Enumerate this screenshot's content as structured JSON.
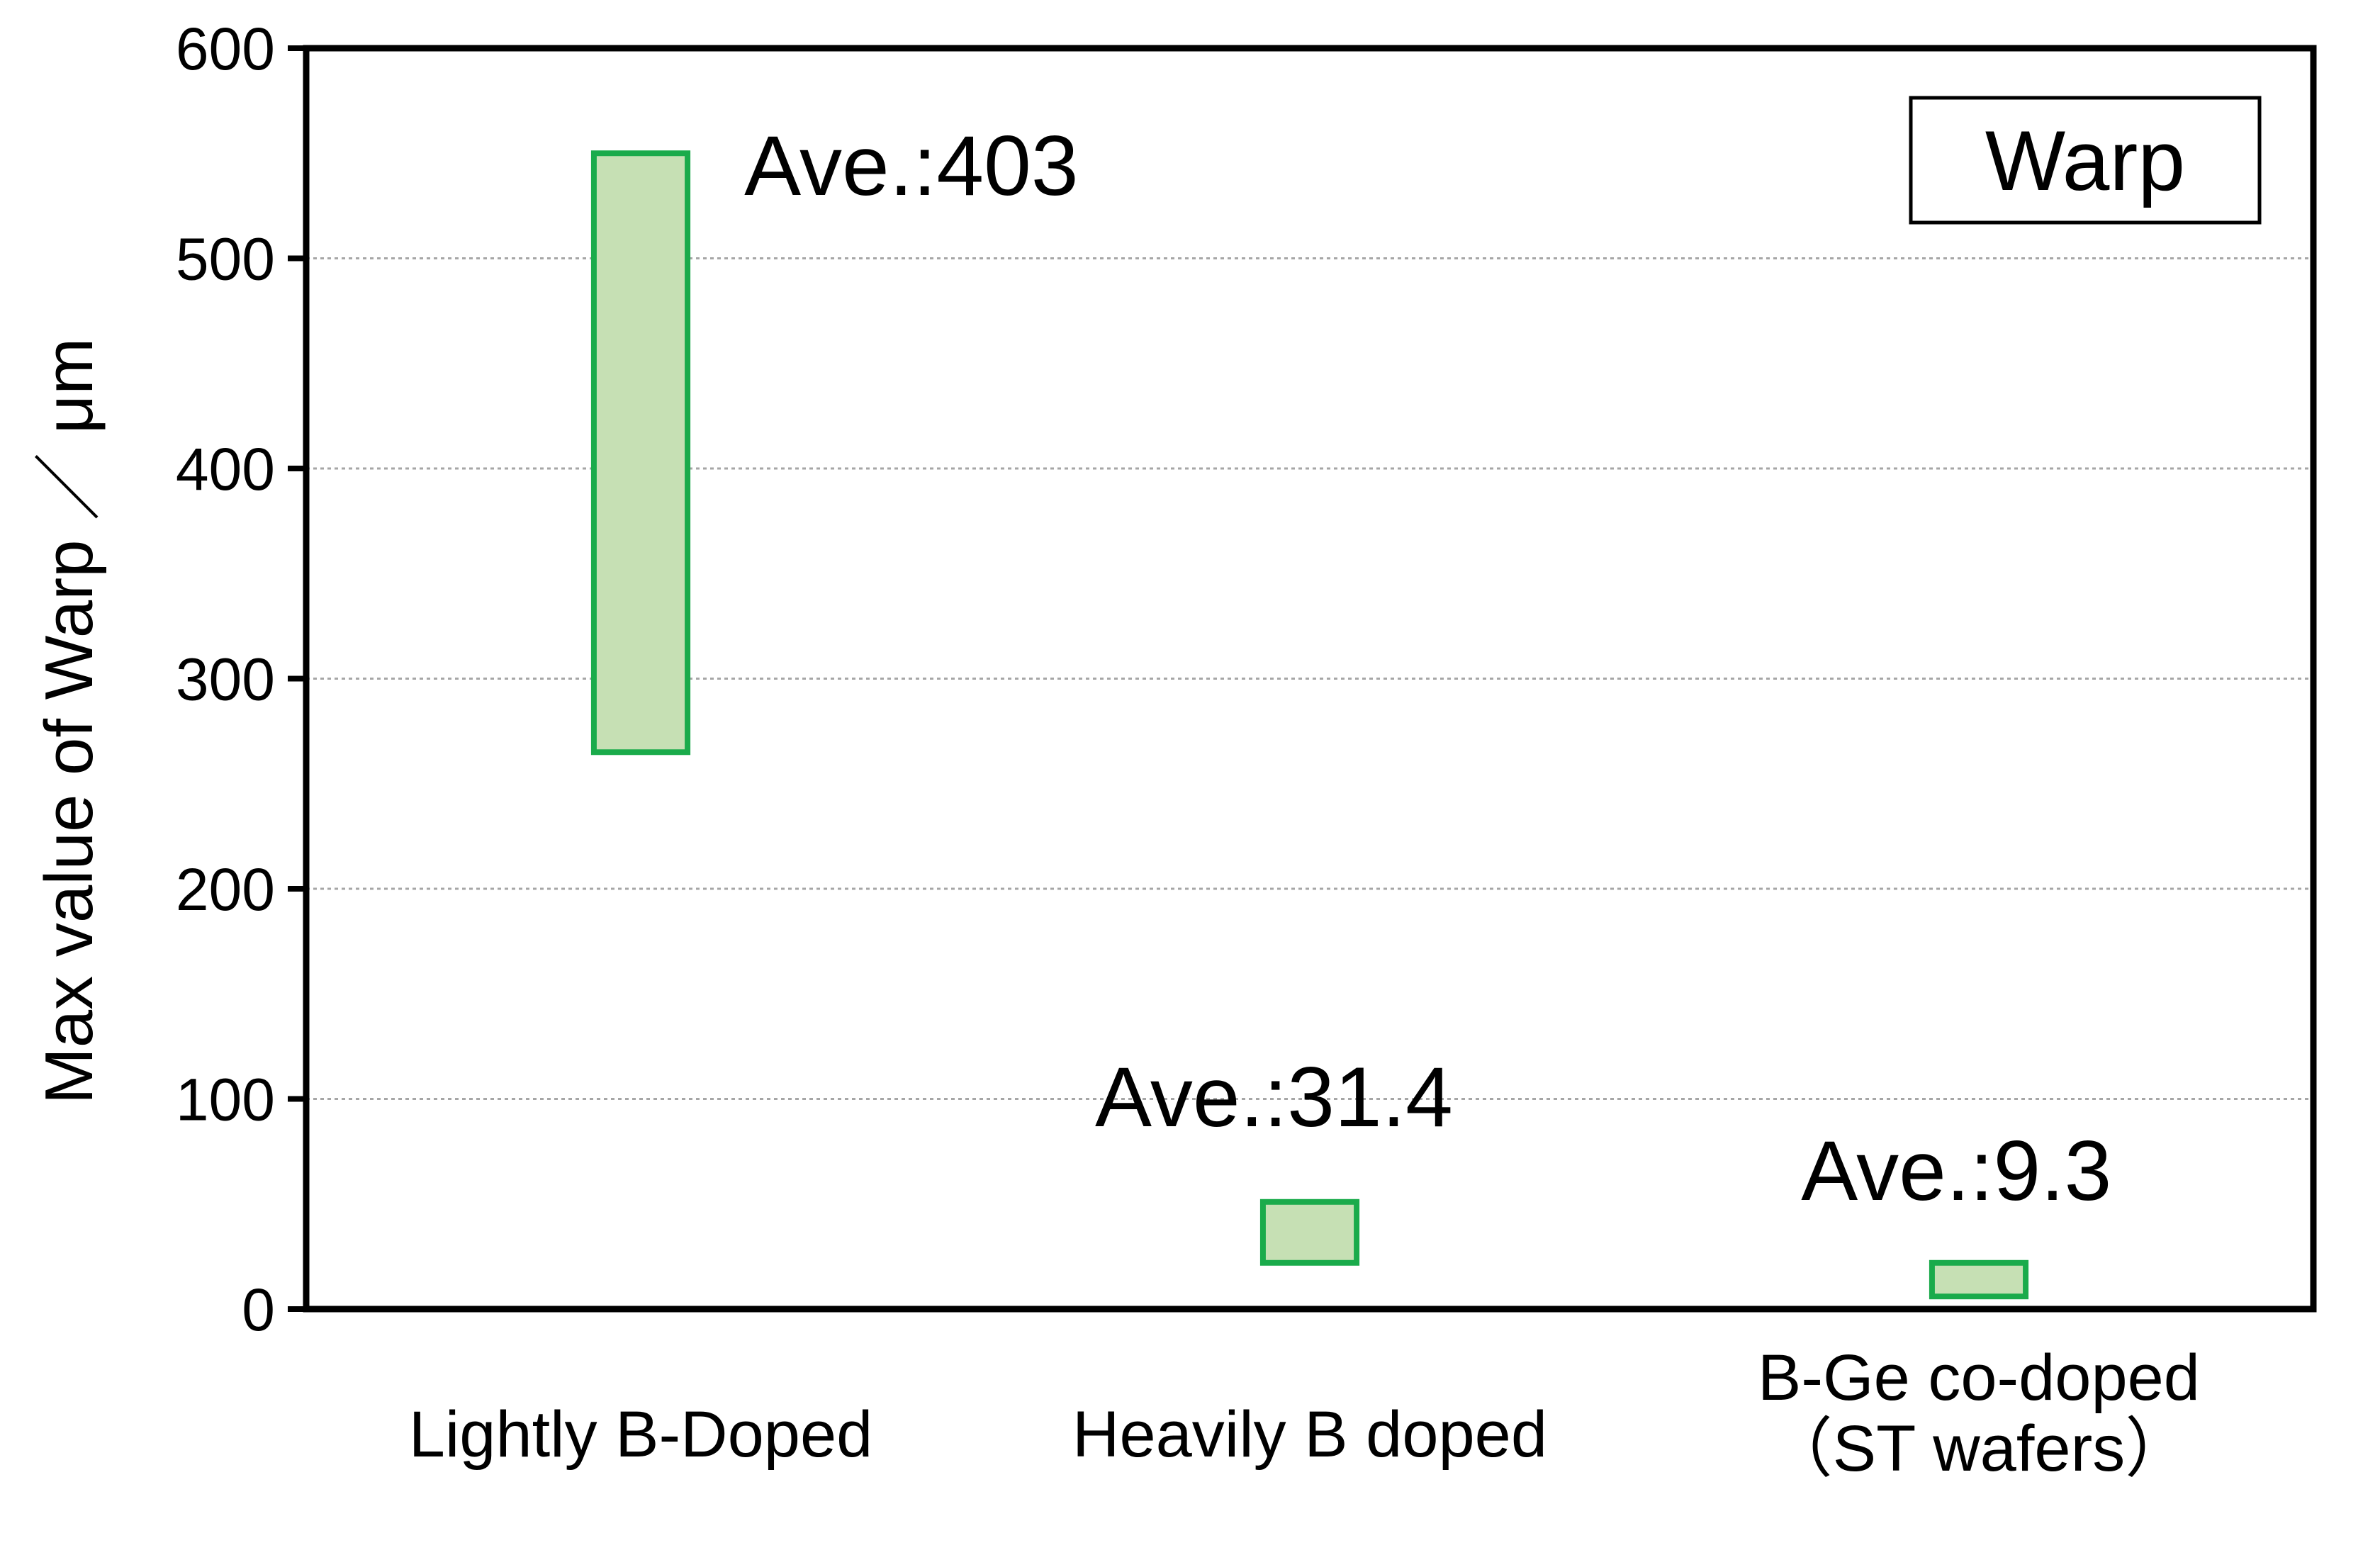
{
  "chart_data": {
    "type": "bar",
    "subtype": "floating-range",
    "ylabel": "Max value of Warp ／ μm",
    "ylim": [
      0,
      600
    ],
    "yticks": [
      0,
      100,
      200,
      300,
      400,
      500,
      600
    ],
    "grid": "horizontal dotted",
    "legend": {
      "label": "Warp",
      "placement": "top-right"
    },
    "categories": [
      {
        "lines": [
          "Lightly B-Doped"
        ]
      },
      {
        "lines": [
          "Heavily B doped"
        ]
      },
      {
        "lines": [
          "B-Ge co-doped",
          "（ST wafers）"
        ]
      }
    ],
    "ranges": [
      {
        "low": 265,
        "high": 550,
        "annotation": "Ave.:403"
      },
      {
        "low": 22,
        "high": 51,
        "annotation": "Ave.:31.4"
      },
      {
        "low": 6,
        "high": 22,
        "annotation": "Ave.:9.3"
      }
    ],
    "colors": {
      "fill": "#c6e0b4",
      "stroke": "#1aab4b",
      "grid": "#a6a6a6",
      "axis": "#000000"
    }
  }
}
